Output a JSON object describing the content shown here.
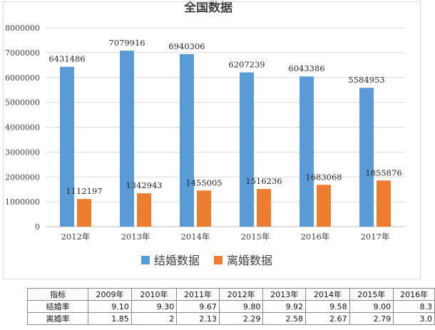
{
  "chart_data": {
    "type": "bar",
    "title": "全国数据",
    "categories": [
      "2012年",
      "2013年",
      "2014年",
      "2015年",
      "2016年",
      "2017年"
    ],
    "series": [
      {
        "name": "结婚数据",
        "color": "#5b9bd5",
        "values": [
          6431486,
          7079916,
          6940306,
          6207239,
          6043386,
          5584953
        ]
      },
      {
        "name": "离婚数据",
        "color": "#ed7d31",
        "values": [
          1112197,
          1342943,
          1455005,
          1516236,
          1683068,
          1855876
        ]
      }
    ],
    "ylim": [
      0,
      8000000
    ],
    "yticks": [
      0,
      1000000,
      2000000,
      3000000,
      4000000,
      5000000,
      6000000,
      7000000,
      8000000
    ],
    "grid": true,
    "legend": "bottom",
    "data_labels": true
  },
  "table": {
    "header": [
      "指标",
      "2009年",
      "2010年",
      "2011年",
      "2012年",
      "2013年",
      "2014年",
      "2015年",
      "2016年"
    ],
    "rows": [
      {
        "label": "结婚率",
        "values": [
          "9.10",
          "9.30",
          "9.67",
          "9.80",
          "9.92",
          "9.58",
          "9.00",
          "8.3"
        ]
      },
      {
        "label": "离婚率",
        "values": [
          "1.85",
          "2",
          "2.13",
          "2.29",
          "2.58",
          "2.67",
          "2.79",
          "3.0"
        ]
      }
    ]
  }
}
